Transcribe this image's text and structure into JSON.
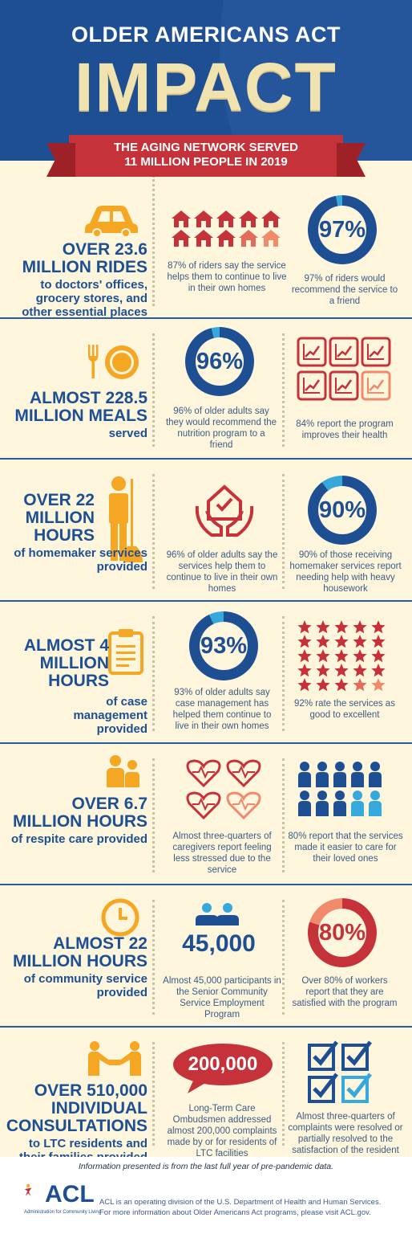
{
  "header": {
    "title_line1": "OLDER AMERICANS ACT",
    "title_line2": "IMPACT",
    "ribbon_line1": "THE AGING NETWORK SERVED",
    "ribbon_line2": "11 MILLION PEOPLE IN 2019"
  },
  "sections": [
    {
      "big": "OVER 23.6 MILLION RIDES",
      "sub": "to doctors' offices, grocery stores, and other essential places",
      "cap1": "87% of riders say the service helps them to continue to live in their own homes",
      "ring": "97%",
      "ring_fraction": 0.97,
      "cap2": "97% of riders would recommend the service to a friend"
    },
    {
      "big": "ALMOST 228.5 MILLION MEALS",
      "sub": "served",
      "ring": "96%",
      "ring_fraction": 0.96,
      "cap1": "96% of older adults say they would recommend the nutrition program to a friend",
      "cap2": "84% report the program improves their health"
    },
    {
      "big": "OVER 22 MILLION HOURS",
      "sub": "of homemaker services provided",
      "cap1": "96% of older adults say the services help them to continue to live in their own homes",
      "ring": "90%",
      "ring_fraction": 0.9,
      "cap2": "90% of those receiving homemaker services report needing help with heavy housework"
    },
    {
      "big": "ALMOST 4 MILLION HOURS",
      "sub": "of case management provided",
      "ring": "93%",
      "ring_fraction": 0.93,
      "cap1": "93% of older adults say case management has helped them continue to live in their own homes",
      "cap2": "92% rate the services as good to excellent"
    },
    {
      "big": "OVER 6.7 MILLION HOURS",
      "sub": "of respite care provided",
      "cap1": "Almost three-quarters of caregivers report feeling less stressed due to the service",
      "cap2": "80% report that the services made it easier to care for their loved ones"
    },
    {
      "big": "ALMOST 22 MILLION HOURS",
      "sub": "of community service provided",
      "number": "45,000",
      "cap1": "Almost 45,000 participants in the Senior Community Service Employment Program",
      "ring": "80%",
      "ring_fraction": 0.8,
      "cap2": "Over 80% of workers report that they are satisfied with the program"
    },
    {
      "big": "OVER 510,000 INDIVIDUAL CONSULTATIONS",
      "sub": "to LTC residents and their families provided",
      "bubble": "200,000",
      "cap1": "Long-Term Care Ombudsmen addressed almost 200,000 complaints made by or for residents of LTC facilities",
      "cap2": "Almost three-quarters of complaints were resolved or partially resolved to the satisfaction of the resident"
    }
  ],
  "footer": {
    "note": "Information presented is from the last full year of pre-pandemic data.",
    "logo": "ACL",
    "logo_sub": "Administration for Community Living",
    "line1": "ACL is an operating division of the U.S. Department of Health and Human Services.",
    "line2": "For more information about Older Americans Act programs, please visit ACL.gov."
  },
  "colors": {
    "navy": "#1f4f93",
    "red": "#c6323a",
    "salmon": "#f08a6b",
    "orange": "#f5a623",
    "cream": "#fdf6dc",
    "lightblue": "#35a9dc"
  }
}
